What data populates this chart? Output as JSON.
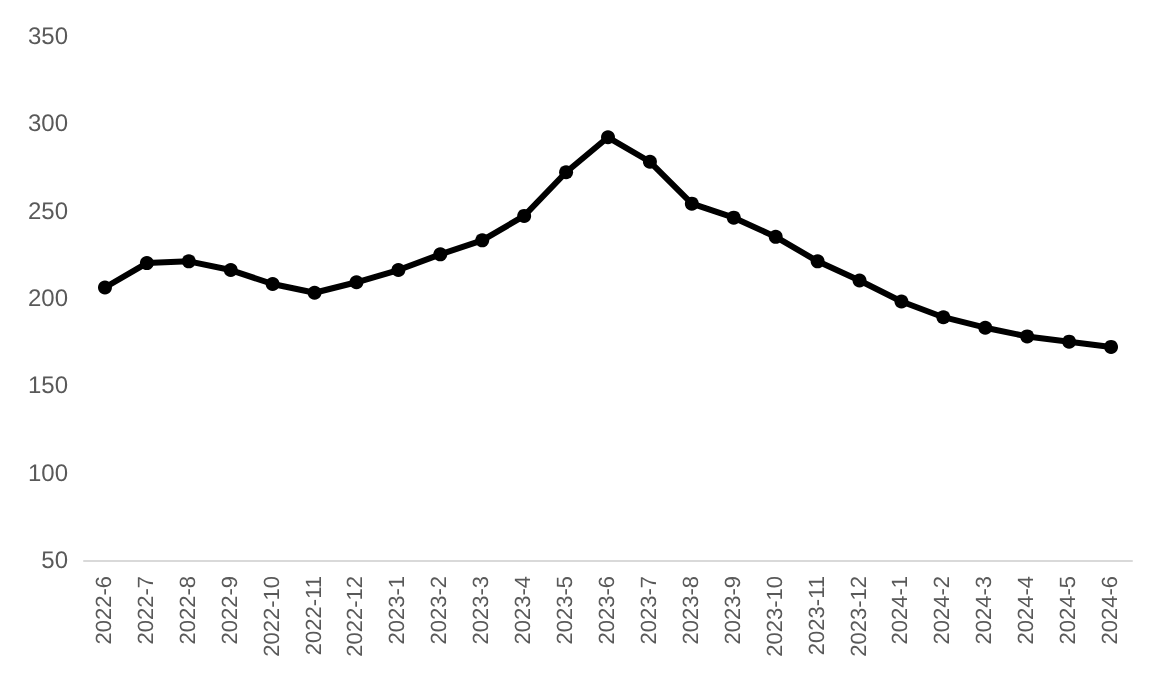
{
  "chart_data": {
    "type": "line",
    "categories": [
      "2022-6",
      "2022-7",
      "2022-8",
      "2022-9",
      "2022-10",
      "2022-11",
      "2022-12",
      "2023-1",
      "2023-2",
      "2023-3",
      "2023-4",
      "2023-5",
      "2023-6",
      "2023-7",
      "2023-8",
      "2023-9",
      "2023-10",
      "2023-11",
      "2023-12",
      "2024-1",
      "2024-2",
      "2024-3",
      "2024-4",
      "2024-5",
      "2024-6"
    ],
    "series": [
      {
        "color": "#000000",
        "values": [
          206,
          220,
          221,
          216,
          208,
          203,
          209,
          216,
          225,
          233,
          247,
          272,
          292,
          278,
          254,
          246,
          235,
          221,
          210,
          198,
          189,
          183,
          178,
          175,
          172
        ]
      }
    ],
    "ylim": [
      50,
      350
    ],
    "yticks": [
      50,
      100,
      150,
      200,
      250,
      300,
      350
    ],
    "marker": "circle",
    "line_style": "solid"
  }
}
